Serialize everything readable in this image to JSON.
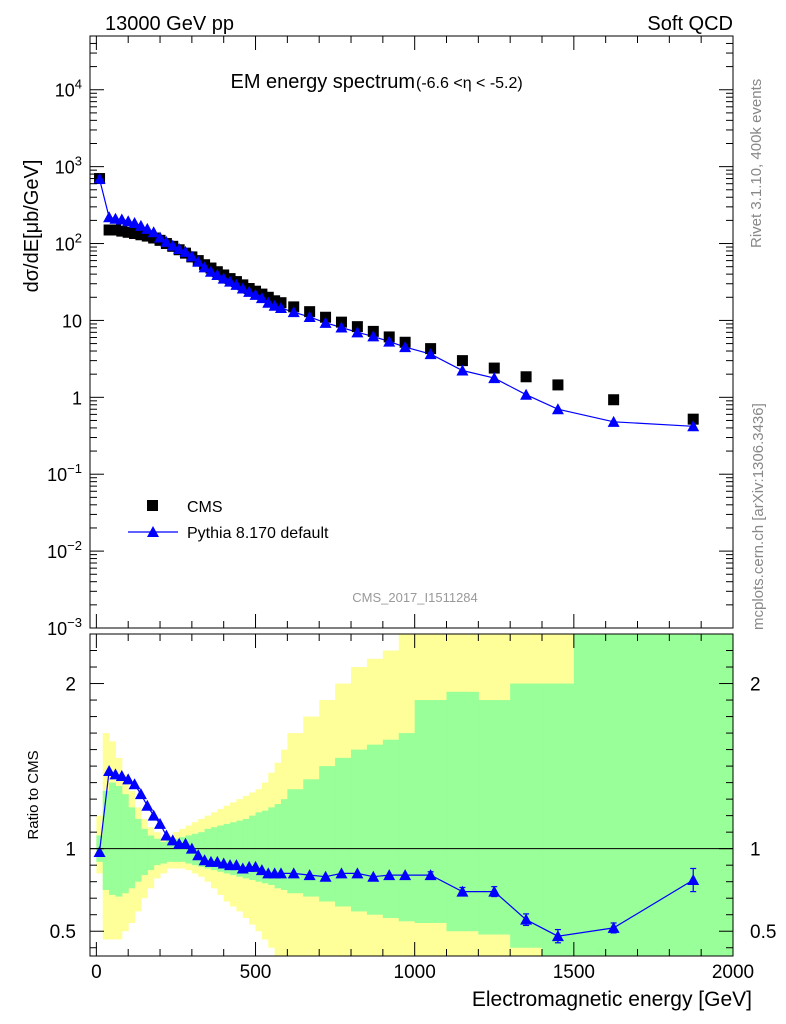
{
  "header": {
    "left": "13000 GeV pp",
    "right": "Soft QCD"
  },
  "side_labels": {
    "rivet": "Rivet 3.1.10,  400k events",
    "source": "mcplots.cern.ch [arXiv:1306.3436]"
  },
  "watermark": "CMS_2017_I1511284",
  "colors": {
    "data": "#000000",
    "mc": "#0000ff",
    "band_inner": "#99ff99",
    "band_outer": "#ffff99"
  },
  "chart_data": [
    {
      "type": "scatter",
      "title": "EM energy spectrum",
      "title_suffix": "(-6.6 <η < -5.2)",
      "ylabel": "dσ/dE[μb/GeV]",
      "xlabel": "",
      "yscale": "log",
      "xlim": [
        -20,
        2000
      ],
      "ylim": [
        0.001,
        50000
      ],
      "y_tick_labels": [
        {
          "v": 10000,
          "base": "10",
          "exp": "4"
        },
        {
          "v": 1000,
          "base": "10",
          "exp": "3"
        },
        {
          "v": 100,
          "base": "10",
          "exp": "2"
        },
        {
          "v": 10,
          "base": "10",
          "exp": ""
        },
        {
          "v": 1,
          "base": "1",
          "exp": ""
        },
        {
          "v": 0.1,
          "base": "10",
          "exp": "−1"
        },
        {
          "v": 0.01,
          "base": "10",
          "exp": "−2"
        },
        {
          "v": 0.001,
          "base": "10",
          "exp": "−3"
        }
      ],
      "legend": {
        "placement": "bottom-left",
        "entries": [
          "CMS",
          "Pythia 8.170 default"
        ]
      },
      "series": [
        {
          "name": "CMS",
          "style": "square",
          "x": [
            10,
            40,
            60,
            80,
            100,
            120,
            140,
            160,
            180,
            200,
            220,
            240,
            260,
            280,
            300,
            320,
            340,
            360,
            380,
            400,
            420,
            440,
            460,
            480,
            500,
            520,
            540,
            560,
            580,
            620,
            670,
            720,
            770,
            820,
            870,
            920,
            970,
            1050,
            1150,
            1250,
            1350,
            1450,
            1625,
            1875
          ],
          "y": [
            700,
            150,
            150,
            145,
            140,
            135,
            130,
            125,
            118,
            110,
            100,
            92,
            83,
            75,
            67,
            60,
            53,
            48,
            43,
            39,
            35,
            32,
            29,
            26,
            24,
            22,
            20,
            18,
            17,
            15,
            13,
            11,
            9.5,
            8.3,
            7.2,
            6.1,
            5.2,
            4.3,
            3.0,
            2.4,
            1.85,
            1.45,
            0.93,
            0.52
          ]
        },
        {
          "name": "Pythia 8.170 default",
          "style": "triangle-line",
          "x": [
            10,
            40,
            60,
            80,
            100,
            120,
            140,
            160,
            180,
            200,
            220,
            240,
            260,
            280,
            300,
            320,
            340,
            360,
            380,
            400,
            420,
            440,
            460,
            480,
            500,
            520,
            540,
            560,
            580,
            620,
            670,
            720,
            770,
            820,
            870,
            920,
            970,
            1050,
            1150,
            1250,
            1350,
            1450,
            1625,
            1875
          ],
          "y": [
            690,
            220,
            210,
            205,
            195,
            185,
            170,
            155,
            140,
            120,
            105,
            94,
            85,
            78,
            68,
            58,
            49,
            43,
            39,
            35,
            32,
            29,
            26,
            23.5,
            21.5,
            19.5,
            17,
            15.5,
            14.5,
            12.8,
            11.1,
            9.3,
            8.1,
            7.0,
            6.2,
            5.3,
            4.5,
            3.65,
            2.23,
            1.78,
            1.08,
            0.7,
            0.48,
            0.42
          ]
        }
      ]
    },
    {
      "type": "scatter",
      "title": "",
      "ylabel": "Ratio to CMS",
      "xlabel": "Electromagnetic energy [GeV]",
      "xlim": [
        -20,
        2000
      ],
      "ylim": [
        0.35,
        2.3
      ],
      "x_ticks": [
        0,
        500,
        1000,
        1500,
        2000
      ],
      "y_ticks": [
        0.5,
        1,
        2
      ],
      "y_tick_labels": [
        "0.5",
        "1",
        "2"
      ],
      "reference_line": 1,
      "series": [
        {
          "name": "Pythia 8.170 default",
          "style": "triangle-line",
          "x": [
            10,
            40,
            60,
            80,
            100,
            120,
            140,
            160,
            180,
            200,
            220,
            240,
            260,
            280,
            300,
            320,
            340,
            360,
            380,
            400,
            420,
            440,
            460,
            480,
            500,
            520,
            540,
            560,
            580,
            620,
            670,
            720,
            770,
            820,
            870,
            920,
            970,
            1050,
            1150,
            1250,
            1350,
            1450,
            1625,
            1875
          ],
          "y": [
            0.98,
            1.47,
            1.45,
            1.44,
            1.42,
            1.39,
            1.33,
            1.26,
            1.2,
            1.15,
            1.08,
            1.05,
            1.03,
            1.03,
            1.0,
            0.96,
            0.93,
            0.92,
            0.92,
            0.91,
            0.9,
            0.9,
            0.88,
            0.89,
            0.89,
            0.87,
            0.85,
            0.85,
            0.85,
            0.85,
            0.84,
            0.83,
            0.85,
            0.85,
            0.83,
            0.84,
            0.84,
            0.84,
            0.74,
            0.74,
            0.57,
            0.47,
            0.52,
            0.81
          ],
          "yerr": [
            0,
            0,
            0,
            0,
            0,
            0,
            0,
            0,
            0,
            0,
            0,
            0,
            0,
            0,
            0,
            0,
            0,
            0,
            0,
            0,
            0,
            0,
            0,
            0,
            0,
            0,
            0,
            0,
            0,
            0,
            0,
            0,
            0,
            0,
            0,
            0,
            0,
            0.02,
            0.025,
            0.03,
            0.035,
            0.04,
            0.03,
            0.07
          ]
        }
      ],
      "bands": {
        "edges": [
          0,
          20,
          40,
          60,
          80,
          100,
          120,
          140,
          160,
          180,
          200,
          220,
          240,
          260,
          280,
          300,
          320,
          340,
          360,
          380,
          400,
          420,
          440,
          460,
          480,
          500,
          520,
          540,
          560,
          580,
          600,
          650,
          700,
          750,
          800,
          850,
          900,
          950,
          1000,
          1100,
          1200,
          1300,
          1400,
          1500,
          1750,
          2000
        ],
        "inner_lo": [
          0.92,
          0.75,
          0.72,
          0.71,
          0.73,
          0.76,
          0.8,
          0.84,
          0.87,
          0.9,
          0.91,
          0.92,
          0.92,
          0.92,
          0.91,
          0.9,
          0.89,
          0.88,
          0.87,
          0.86,
          0.85,
          0.84,
          0.83,
          0.82,
          0.81,
          0.8,
          0.79,
          0.78,
          0.76,
          0.75,
          0.73,
          0.71,
          0.68,
          0.65,
          0.62,
          0.6,
          0.58,
          0.56,
          0.55,
          0.5,
          0.48,
          0.4,
          0.35,
          0.35,
          0.35
        ],
        "inner_hi": [
          1.08,
          1.35,
          1.4,
          1.38,
          1.33,
          1.25,
          1.18,
          1.12,
          1.08,
          1.06,
          1.04,
          1.05,
          1.06,
          1.07,
          1.08,
          1.09,
          1.1,
          1.12,
          1.13,
          1.14,
          1.15,
          1.16,
          1.17,
          1.18,
          1.2,
          1.22,
          1.23,
          1.25,
          1.27,
          1.3,
          1.36,
          1.42,
          1.5,
          1.55,
          1.6,
          1.63,
          1.66,
          1.7,
          1.9,
          1.95,
          1.9,
          2.0,
          2.0,
          2.3,
          2.3
        ],
        "outer_lo": [
          0.85,
          0.45,
          0.45,
          0.45,
          0.5,
          0.55,
          0.62,
          0.7,
          0.76,
          0.82,
          0.85,
          0.88,
          0.88,
          0.88,
          0.87,
          0.85,
          0.83,
          0.8,
          0.76,
          0.72,
          0.68,
          0.65,
          0.62,
          0.58,
          0.54,
          0.5,
          0.45,
          0.4,
          0.35,
          0.35,
          0.35,
          0.35,
          0.35,
          0.35,
          0.35,
          0.35,
          0.35,
          0.35,
          0.35,
          0.35,
          0.35,
          0.35,
          0.35,
          0.35,
          0.35
        ],
        "outer_hi": [
          1.2,
          1.7,
          1.65,
          1.55,
          1.45,
          1.35,
          1.25,
          1.18,
          1.13,
          1.1,
          1.07,
          1.08,
          1.1,
          1.12,
          1.14,
          1.16,
          1.18,
          1.2,
          1.22,
          1.24,
          1.26,
          1.28,
          1.3,
          1.32,
          1.34,
          1.36,
          1.4,
          1.46,
          1.52,
          1.6,
          1.7,
          1.8,
          1.9,
          2.0,
          2.1,
          2.15,
          2.2,
          2.3,
          2.3,
          2.3,
          2.3,
          2.3,
          2.3,
          2.3,
          2.3
        ]
      }
    }
  ]
}
